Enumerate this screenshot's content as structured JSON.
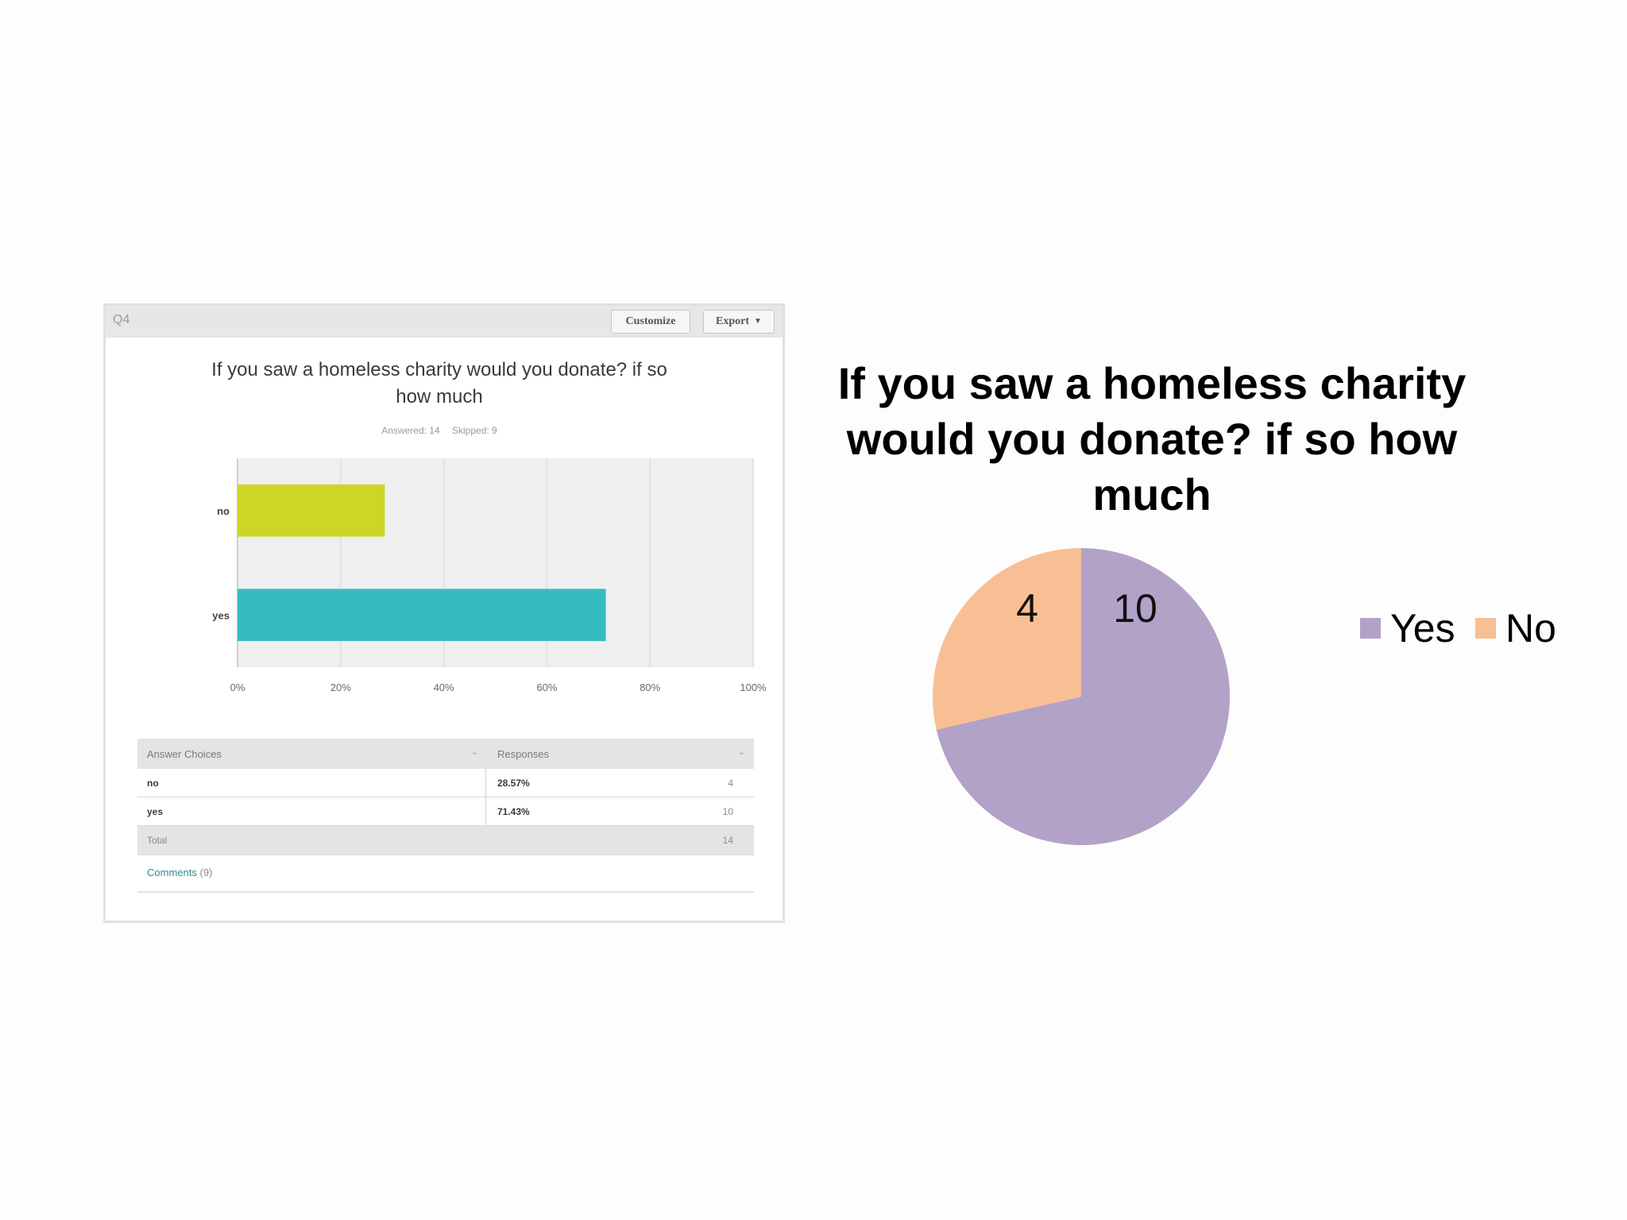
{
  "left_panel": {
    "question_number": "Q4",
    "customize_label": "Customize",
    "export_label": "Export",
    "title": "If you saw a homeless charity would you donate? if so how much",
    "answered": "Answered: 14",
    "skipped": "Skipped: 9",
    "table": {
      "headers": [
        "Answer Choices",
        "Responses"
      ],
      "rows": [
        {
          "choice": "no",
          "percent": "28.57%",
          "count": "4"
        },
        {
          "choice": "yes",
          "percent": "71.43%",
          "count": "10"
        }
      ],
      "total_label": "Total",
      "total_value": "14"
    },
    "comments_label": "Comments",
    "comments_count": "(9)"
  },
  "chart_data": [
    {
      "type": "bar",
      "orientation": "horizontal",
      "categories": [
        "no",
        "yes"
      ],
      "values": [
        28.57,
        71.43
      ],
      "xlim": [
        0,
        100
      ],
      "x_ticks": [
        "0%",
        "20%",
        "40%",
        "60%",
        "80%",
        "100%"
      ],
      "grid": true,
      "colors": [
        "#cdd624",
        "#36bbbf"
      ]
    },
    {
      "type": "pie",
      "title": "If you saw a homeless charity would you donate? if so how much",
      "categories": [
        "Yes",
        "No"
      ],
      "values": [
        10,
        4
      ],
      "data_labels": [
        "10",
        "4"
      ],
      "colors": [
        "#b3a2c7",
        "#f9bf94"
      ],
      "legend": "right"
    }
  ]
}
